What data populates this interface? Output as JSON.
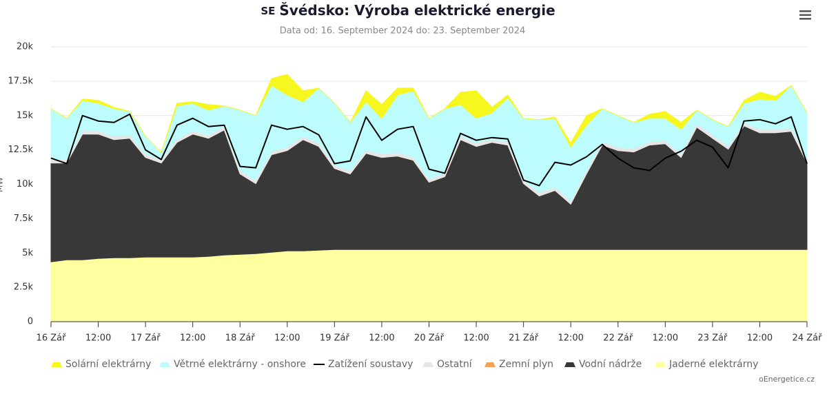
{
  "chart_data": {
    "type": "area",
    "country_code": "SE",
    "title": "Švédsko: Výroba elektrické energie",
    "subtitle": "Data od: 16. September 2024 do: 23. September 2024",
    "y_axis_title": "MW",
    "credit": "oEnergetice.cz",
    "stacked": true,
    "grid": true,
    "legend": "bottom",
    "x": [
      "2024-09-16T00:00",
      "2024-09-16T04:00",
      "2024-09-16T08:00",
      "2024-09-16T12:00",
      "2024-09-16T16:00",
      "2024-09-16T20:00",
      "2024-09-17T00:00",
      "2024-09-17T04:00",
      "2024-09-17T08:00",
      "2024-09-17T12:00",
      "2024-09-17T16:00",
      "2024-09-17T20:00",
      "2024-09-18T00:00",
      "2024-09-18T04:00",
      "2024-09-18T08:00",
      "2024-09-18T12:00",
      "2024-09-18T16:00",
      "2024-09-18T20:00",
      "2024-09-19T00:00",
      "2024-09-19T04:00",
      "2024-09-19T08:00",
      "2024-09-19T12:00",
      "2024-09-19T16:00",
      "2024-09-19T20:00",
      "2024-09-20T00:00",
      "2024-09-20T04:00",
      "2024-09-20T08:00",
      "2024-09-20T12:00",
      "2024-09-20T16:00",
      "2024-09-20T20:00",
      "2024-09-21T00:00",
      "2024-09-21T04:00",
      "2024-09-21T08:00",
      "2024-09-21T12:00",
      "2024-09-21T16:00",
      "2024-09-21T20:00",
      "2024-09-22T00:00",
      "2024-09-22T04:00",
      "2024-09-22T08:00",
      "2024-09-22T12:00",
      "2024-09-22T16:00",
      "2024-09-22T20:00",
      "2024-09-23T00:00",
      "2024-09-23T04:00",
      "2024-09-23T08:00",
      "2024-09-23T12:00",
      "2024-09-23T16:00",
      "2024-09-23T20:00",
      "2024-09-24T00:00"
    ],
    "xlim": [
      "2024-09-16T00:00",
      "2024-09-24T00:00"
    ],
    "xticks": [
      {
        "value": "2024-09-16T00:00",
        "label": "16 Zář"
      },
      {
        "value": "2024-09-16T12:00",
        "label": "12:00"
      },
      {
        "value": "2024-09-17T00:00",
        "label": "17 Zář"
      },
      {
        "value": "2024-09-17T12:00",
        "label": "12:00"
      },
      {
        "value": "2024-09-18T00:00",
        "label": "18 Zář"
      },
      {
        "value": "2024-09-18T12:00",
        "label": "12:00"
      },
      {
        "value": "2024-09-19T00:00",
        "label": "19 Zář"
      },
      {
        "value": "2024-09-19T12:00",
        "label": "12:00"
      },
      {
        "value": "2024-09-20T00:00",
        "label": "20 Zář"
      },
      {
        "value": "2024-09-20T12:00",
        "label": "12:00"
      },
      {
        "value": "2024-09-21T00:00",
        "label": "21 Zář"
      },
      {
        "value": "2024-09-21T12:00",
        "label": "12:00"
      },
      {
        "value": "2024-09-22T00:00",
        "label": "22 Zář"
      },
      {
        "value": "2024-09-22T12:00",
        "label": "12:00"
      },
      {
        "value": "2024-09-23T00:00",
        "label": "23 Zář"
      },
      {
        "value": "2024-09-23T12:00",
        "label": "12:00"
      },
      {
        "value": "2024-09-24T00:00",
        "label": "24 Zář"
      }
    ],
    "ylim": [
      0,
      20000
    ],
    "yticks": [
      0,
      {
        "value": 2500,
        "label": "2.5k"
      },
      {
        "value": 5000,
        "label": "5k"
      },
      {
        "value": 7500,
        "label": "7.5k"
      },
      {
        "value": 10000,
        "label": "10k"
      },
      {
        "value": 12500,
        "label": "12.5k"
      },
      {
        "value": 15000,
        "label": "15k"
      },
      {
        "value": 17500,
        "label": "17.5k"
      },
      {
        "value": 20000,
        "label": "20k"
      }
    ],
    "series": [
      {
        "name": "Solární elektrárny",
        "type": "area",
        "color": "#f7f720",
        "values": [
          0,
          0,
          100,
          200,
          100,
          0,
          0,
          0,
          200,
          100,
          400,
          0,
          0,
          0,
          500,
          1500,
          800,
          0,
          0,
          0,
          800,
          1000,
          500,
          200,
          0,
          0,
          900,
          2000,
          400,
          200,
          0,
          0,
          100,
          300,
          700,
          0,
          0,
          0,
          300,
          500,
          500,
          0,
          0,
          0,
          200,
          500,
          300,
          0,
          0
        ]
      },
      {
        "name": "Větrné elektrárny - onshore",
        "type": "area",
        "color": "#bdfcfc",
        "values": [
          3700,
          3000,
          2200,
          2000,
          2000,
          1700,
          1300,
          500,
          2400,
          2000,
          1800,
          1500,
          4400,
          4700,
          4800,
          3800,
          2500,
          4000,
          4500,
          3500,
          3500,
          2600,
          4200,
          4800,
          4400,
          4700,
          2300,
          1800,
          1900,
          3200,
          4500,
          5300,
          5000,
          3900,
          3300,
          2400,
          2300,
          1900,
          1700,
          1600,
          1800,
          1000,
          1100,
          1400,
          1400,
          2200,
          2100,
          3100,
          3400
        ]
      },
      {
        "name": "Zatížení soustavy",
        "type": "line",
        "color": "#000000",
        "values": [
          11900,
          11500,
          15000,
          14600,
          14500,
          15100,
          12500,
          11800,
          14300,
          14800,
          14200,
          14300,
          11300,
          11200,
          14300,
          14000,
          14200,
          13600,
          11500,
          11700,
          14900,
          13200,
          14000,
          14200,
          11100,
          10800,
          13700,
          13200,
          13400,
          13300,
          10300,
          9900,
          11600,
          11400,
          12000,
          12900,
          11900,
          11200,
          11000,
          11900,
          12400,
          13200,
          12700,
          11200,
          14600,
          14700,
          14400,
          14900,
          11500
        ]
      },
      {
        "name": "Ostatní",
        "type": "area",
        "color": "#e6e6e6",
        "values": [
          250,
          250,
          250,
          250,
          250,
          250,
          250,
          250,
          250,
          250,
          250,
          250,
          250,
          250,
          250,
          250,
          250,
          250,
          250,
          250,
          250,
          250,
          250,
          250,
          250,
          250,
          250,
          250,
          250,
          250,
          250,
          250,
          250,
          250,
          250,
          250,
          250,
          250,
          250,
          250,
          250,
          250,
          250,
          250,
          250,
          250,
          250,
          250,
          250
        ]
      },
      {
        "name": "Zemní plyn",
        "type": "area",
        "color": "#f4a25a",
        "values": [
          0,
          0,
          0,
          0,
          0,
          0,
          0,
          0,
          0,
          0,
          0,
          0,
          0,
          0,
          0,
          0,
          0,
          0,
          0,
          0,
          0,
          0,
          0,
          0,
          0,
          0,
          0,
          0,
          0,
          0,
          0,
          0,
          0,
          0,
          0,
          0,
          0,
          0,
          0,
          0,
          0,
          0,
          0,
          0,
          0,
          0,
          0,
          0,
          0
        ]
      },
      {
        "name": "Vodní nádrže",
        "type": "area",
        "color": "#383838",
        "values": [
          7200,
          7050,
          9150,
          9050,
          8600,
          8700,
          7250,
          6850,
          8350,
          8950,
          8600,
          9100,
          5850,
          5100,
          7100,
          7300,
          8100,
          7550,
          5900,
          5500,
          7000,
          6700,
          6800,
          6500,
          4900,
          5300,
          8000,
          7500,
          7800,
          7600,
          4800,
          3900,
          4300,
          3300,
          5500,
          7600,
          7200,
          7100,
          7600,
          7700,
          6700,
          8900,
          8100,
          7300,
          9000,
          8500,
          8500,
          8600,
          6300
        ]
      },
      {
        "name": "Jaderné elektrárny",
        "type": "area",
        "color": "#ffffa0",
        "values": [
          4350,
          4500,
          4500,
          4600,
          4650,
          4650,
          4700,
          4700,
          4700,
          4700,
          4750,
          4850,
          4900,
          4950,
          5050,
          5150,
          5150,
          5200,
          5250,
          5250,
          5250,
          5250,
          5250,
          5250,
          5250,
          5250,
          5250,
          5250,
          5250,
          5250,
          5250,
          5250,
          5250,
          5250,
          5250,
          5250,
          5250,
          5250,
          5250,
          5250,
          5250,
          5250,
          5250,
          5250,
          5250,
          5250,
          5250,
          5250,
          5250
        ]
      }
    ]
  }
}
